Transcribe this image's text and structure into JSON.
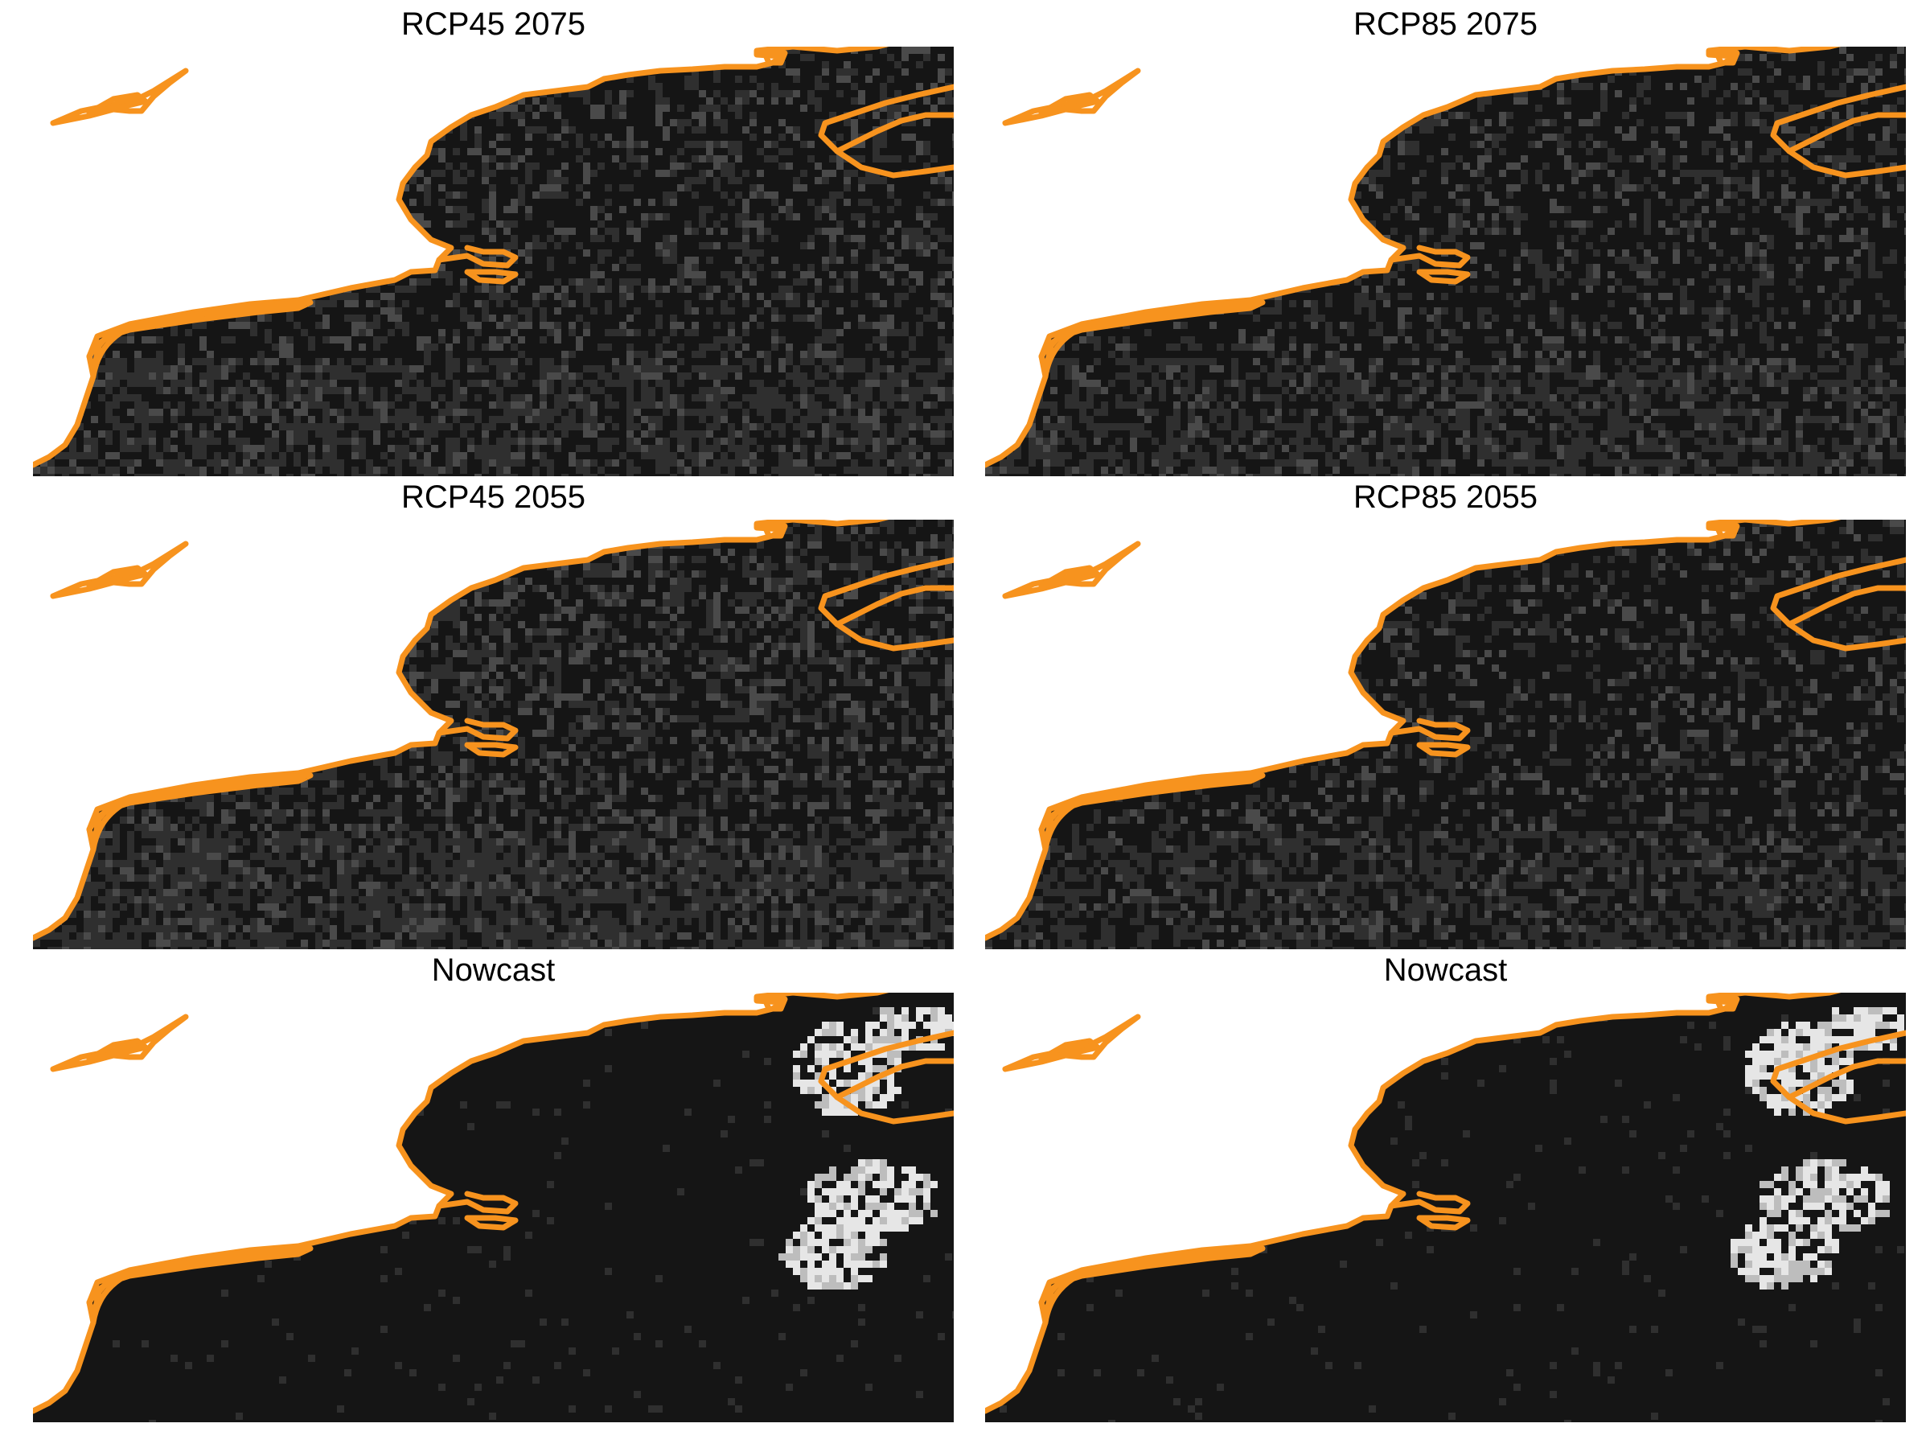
{
  "figure": {
    "panels": [
      {
        "title": "RCP45 2075",
        "scenario": "RCP45",
        "year": "2075"
      },
      {
        "title": "RCP85 2075",
        "scenario": "RCP85",
        "year": "2075"
      },
      {
        "title": "RCP45 2055",
        "scenario": "RCP45",
        "year": "2055"
      },
      {
        "title": "RCP85 2055",
        "scenario": "RCP85",
        "year": "2055"
      },
      {
        "title": "Nowcast",
        "scenario": "Nowcast",
        "year": ""
      },
      {
        "title": "Nowcast",
        "scenario": "Nowcast",
        "year": ""
      }
    ]
  },
  "colors": {
    "coastline": "#f7931e",
    "ocean_dark": "#151515",
    "ocean_mid": "#2f2f2f",
    "ocean_light": "#4a4a4a",
    "hotspot": "#e6e6e6",
    "land": "#ffffff"
  }
}
